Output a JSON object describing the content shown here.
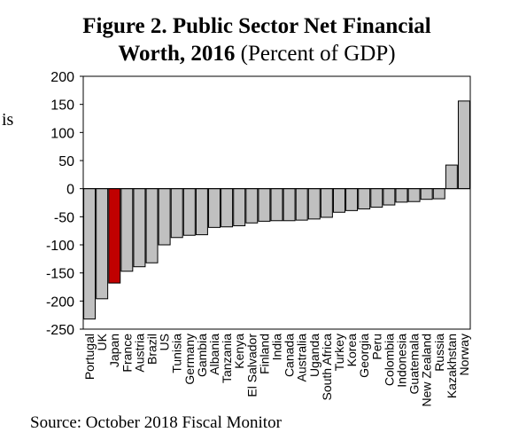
{
  "figure": {
    "title_bold_line1": "Figure 2. Public Sector Net Financial",
    "title_bold_line2": "Worth, 2016",
    "title_normal": " (Percent of GDP)",
    "source": "Source: October 2018 Fiscal Monitor",
    "stray_text": "is"
  },
  "chart_data": {
    "type": "bar",
    "title": "Figure 2. Public Sector Net Financial Worth, 2016 (Percent of GDP)",
    "xlabel": "",
    "ylabel": "",
    "ylim": [
      -250,
      200
    ],
    "yticks": [
      200,
      150,
      100,
      50,
      0,
      -50,
      -100,
      -150,
      -200,
      -250
    ],
    "grid": false,
    "categories": [
      "Portugal",
      "UK",
      "Japan",
      "France",
      "Austria",
      "Brazil",
      "US",
      "Tunisia",
      "Germany",
      "Gambia",
      "Albania",
      "Tanzania",
      "Kenya",
      "El Salvador",
      "Finland",
      "India",
      "Canada",
      "Australia",
      "Uganda",
      "South Africa",
      "Turkey",
      "Korea",
      "Georgia",
      "Peru",
      "Colombia",
      "Indonesia",
      "Guatemala",
      "New Zealand",
      "Russia",
      "Kazakhstan",
      "Norway"
    ],
    "values": [
      -232,
      -196,
      -168,
      -147,
      -139,
      -132,
      -100,
      -87,
      -83,
      -82,
      -69,
      -68,
      -66,
      -61,
      -58,
      -57,
      -57,
      -56,
      -54,
      -51,
      -42,
      -39,
      -36,
      -33,
      -29,
      -24,
      -23,
      -19,
      -18,
      42,
      156
    ],
    "bar_color": "#c0c0c0",
    "highlight_color": "#c00000",
    "highlight_category": "Japan"
  }
}
